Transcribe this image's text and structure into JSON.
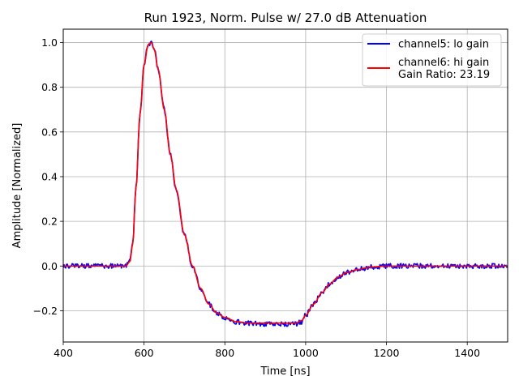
{
  "chart_data": {
    "type": "line",
    "title": "Run 1923, Norm. Pulse w/ 27.0 dB Attenuation",
    "xlabel": "Time [ns]",
    "ylabel": "Amplitude [Normalized]",
    "xlim": [
      400,
      1500
    ],
    "ylim": [
      -0.34,
      1.06
    ],
    "grid": true,
    "legend_position": "top-right",
    "x_ticks": [
      400,
      600,
      800,
      1000,
      1200,
      1400
    ],
    "y_ticks": [
      -0.2,
      0.0,
      0.2,
      0.4,
      0.6,
      0.8,
      1.0
    ],
    "x_tick_labels": [
      "400",
      "600",
      "800",
      "1000",
      "1200",
      "1400"
    ],
    "y_tick_labels": [
      "−0.2",
      "0.0",
      "0.2",
      "0.4",
      "0.6",
      "0.8",
      "1.0"
    ],
    "series": [
      {
        "name": "channel5: lo gain",
        "legend_lines": [
          "channel5: lo gain"
        ],
        "color": "#0000ff",
        "noisy": true,
        "x": [
          400,
          500,
          555,
          565,
          572,
          580,
          590,
          600,
          610,
          618,
          625,
          635,
          650,
          665,
          680,
          700,
          720,
          740,
          760,
          780,
          800,
          830,
          860,
          900,
          940,
          975,
          990,
          1000,
          1020,
          1040,
          1060,
          1080,
          1100,
          1130,
          1160,
          1200,
          1300,
          1400,
          1500
        ],
        "y": [
          0.0,
          0.0,
          0.0,
          0.02,
          0.1,
          0.35,
          0.68,
          0.9,
          0.99,
          1.0,
          0.97,
          0.88,
          0.7,
          0.5,
          0.34,
          0.14,
          0.0,
          -0.1,
          -0.17,
          -0.21,
          -0.23,
          -0.25,
          -0.255,
          -0.26,
          -0.26,
          -0.26,
          -0.25,
          -0.22,
          -0.17,
          -0.12,
          -0.08,
          -0.05,
          -0.03,
          -0.015,
          -0.005,
          0.0,
          0.0,
          0.0,
          0.0
        ]
      },
      {
        "name": "channel6: hi gain",
        "legend_lines": [
          "channel6: hi gain",
          "Gain Ratio: 23.19"
        ],
        "color": "#ff0000",
        "noisy": false,
        "x": [
          400,
          500,
          555,
          565,
          572,
          580,
          590,
          600,
          610,
          618,
          625,
          635,
          650,
          665,
          680,
          700,
          720,
          740,
          760,
          780,
          800,
          830,
          860,
          900,
          940,
          975,
          990,
          1000,
          1020,
          1040,
          1060,
          1080,
          1100,
          1130,
          1160,
          1200,
          1300,
          1400,
          1500
        ],
        "y": [
          0.0,
          0.0,
          0.0,
          0.02,
          0.1,
          0.35,
          0.68,
          0.9,
          0.99,
          1.0,
          0.97,
          0.88,
          0.7,
          0.5,
          0.34,
          0.14,
          0.0,
          -0.1,
          -0.17,
          -0.21,
          -0.23,
          -0.25,
          -0.255,
          -0.255,
          -0.255,
          -0.255,
          -0.245,
          -0.22,
          -0.17,
          -0.12,
          -0.08,
          -0.05,
          -0.03,
          -0.015,
          -0.005,
          0.0,
          0.0,
          0.0,
          0.0
        ]
      }
    ]
  }
}
